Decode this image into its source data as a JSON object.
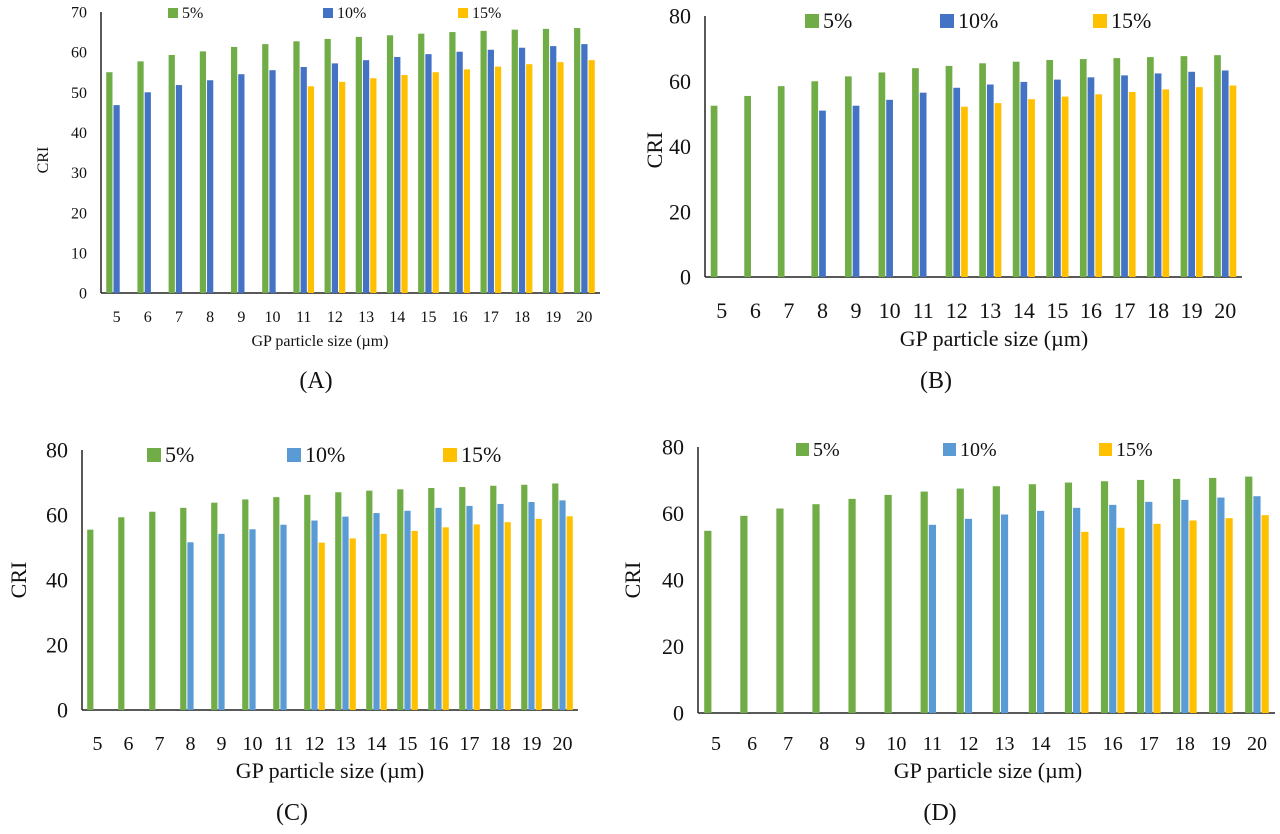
{
  "figure": {
    "panels": [
      "(A)",
      "(B)",
      "(C)",
      "(D)"
    ]
  },
  "chart_data": [
    {
      "type": "bar",
      "panel_label": "(A)",
      "title": "",
      "xlabel": "GP particle size (µm)",
      "ylabel": "CRI",
      "ylim": [
        0,
        70
      ],
      "yticks": [
        0,
        10,
        20,
        30,
        40,
        50,
        60,
        70
      ],
      "grid": false,
      "legend": "top",
      "categories": [
        "5",
        "6",
        "7",
        "8",
        "9",
        "10",
        "11",
        "12",
        "13",
        "14",
        "15",
        "16",
        "17",
        "18",
        "19",
        "20"
      ],
      "series": [
        {
          "name": "5%",
          "color": "#70ad47",
          "values": [
            55.0,
            57.7,
            59.3,
            60.2,
            61.3,
            62.0,
            62.7,
            63.3,
            63.8,
            64.2,
            64.6,
            65.0,
            65.3,
            65.6,
            65.8,
            66.0
          ]
        },
        {
          "name": "10%",
          "color": "#4472c4",
          "values": [
            46.8,
            50.0,
            51.8,
            53.0,
            54.5,
            55.5,
            56.3,
            57.2,
            58.0,
            58.8,
            59.5,
            60.1,
            60.6,
            61.1,
            61.5,
            62.0
          ]
        },
        {
          "name": "15%",
          "color": "#ffc000",
          "values": [
            null,
            null,
            null,
            null,
            null,
            null,
            51.5,
            52.6,
            53.5,
            54.3,
            55.0,
            55.7,
            56.4,
            57.0,
            57.5,
            58.0
          ]
        }
      ]
    },
    {
      "type": "bar",
      "panel_label": "(B)",
      "title": "",
      "xlabel": "GP particle size (µm)",
      "ylabel": "CRI",
      "ylim": [
        0,
        80
      ],
      "yticks": [
        0,
        20,
        40,
        60,
        80
      ],
      "grid": false,
      "legend": "top",
      "categories": [
        "5",
        "6",
        "7",
        "8",
        "9",
        "10",
        "11",
        "12",
        "13",
        "14",
        "15",
        "16",
        "17",
        "18",
        "19",
        "20"
      ],
      "series": [
        {
          "name": "5%",
          "color": "#70ad47",
          "values": [
            52.5,
            55.5,
            58.5,
            60.0,
            61.5,
            62.7,
            64.0,
            64.7,
            65.5,
            66.0,
            66.5,
            66.8,
            67.1,
            67.4,
            67.7,
            68.0
          ]
        },
        {
          "name": "10%",
          "color": "#4472c4",
          "values": [
            null,
            null,
            null,
            51.0,
            52.5,
            54.3,
            56.5,
            58.0,
            59.0,
            59.8,
            60.5,
            61.2,
            61.8,
            62.4,
            62.9,
            63.3
          ]
        },
        {
          "name": "15%",
          "color": "#ffc000",
          "values": [
            null,
            null,
            null,
            null,
            null,
            null,
            null,
            52.2,
            53.3,
            54.5,
            55.3,
            56.0,
            56.7,
            57.5,
            58.2,
            58.7
          ]
        }
      ]
    },
    {
      "type": "bar",
      "panel_label": "(C)",
      "title": "",
      "xlabel": "GP particle size (µm)",
      "ylabel": "CRI",
      "ylim": [
        0,
        80
      ],
      "yticks": [
        0,
        20,
        40,
        60,
        80
      ],
      "grid": false,
      "legend": "top",
      "categories": [
        "5",
        "6",
        "7",
        "8",
        "9",
        "10",
        "11",
        "12",
        "13",
        "14",
        "15",
        "16",
        "17",
        "18",
        "19",
        "20"
      ],
      "series": [
        {
          "name": "5%",
          "color": "#70ad47",
          "values": [
            55.5,
            59.3,
            61.0,
            62.2,
            63.8,
            64.8,
            65.5,
            66.2,
            67.0,
            67.5,
            67.9,
            68.3,
            68.6,
            69.0,
            69.3,
            69.7
          ]
        },
        {
          "name": "10%",
          "color": "#5b9bd5",
          "values": [
            null,
            null,
            null,
            51.6,
            54.2,
            55.6,
            57.0,
            58.3,
            59.5,
            60.6,
            61.3,
            62.2,
            62.8,
            63.4,
            64.0,
            64.5
          ]
        },
        {
          "name": "15%",
          "color": "#ffc000",
          "values": [
            null,
            null,
            null,
            null,
            null,
            null,
            null,
            51.5,
            52.8,
            54.2,
            55.1,
            56.2,
            57.1,
            57.8,
            58.8,
            59.6
          ]
        }
      ]
    },
    {
      "type": "bar",
      "panel_label": "(D)",
      "title": "",
      "xlabel": "GP particle size (µm)",
      "ylabel": "CRI",
      "ylim": [
        0,
        80
      ],
      "yticks": [
        0,
        20,
        40,
        60,
        80
      ],
      "grid": false,
      "legend": "top",
      "categories": [
        "5",
        "6",
        "7",
        "8",
        "9",
        "10",
        "11",
        "12",
        "13",
        "14",
        "15",
        "16",
        "17",
        "18",
        "19",
        "20"
      ],
      "series": [
        {
          "name": "5%",
          "color": "#70ad47",
          "values": [
            54.8,
            59.3,
            61.5,
            62.8,
            64.4,
            65.6,
            66.6,
            67.5,
            68.2,
            68.8,
            69.3,
            69.7,
            70.1,
            70.4,
            70.7,
            71.1
          ]
        },
        {
          "name": "10%",
          "color": "#5b9bd5",
          "values": [
            null,
            null,
            null,
            null,
            null,
            null,
            56.6,
            58.4,
            59.7,
            60.8,
            61.7,
            62.6,
            63.5,
            64.1,
            64.8,
            65.2
          ]
        },
        {
          "name": "15%",
          "color": "#ffc000",
          "values": [
            null,
            null,
            null,
            null,
            null,
            null,
            null,
            null,
            null,
            null,
            54.5,
            55.7,
            56.9,
            57.9,
            58.6,
            59.5
          ]
        }
      ]
    }
  ]
}
